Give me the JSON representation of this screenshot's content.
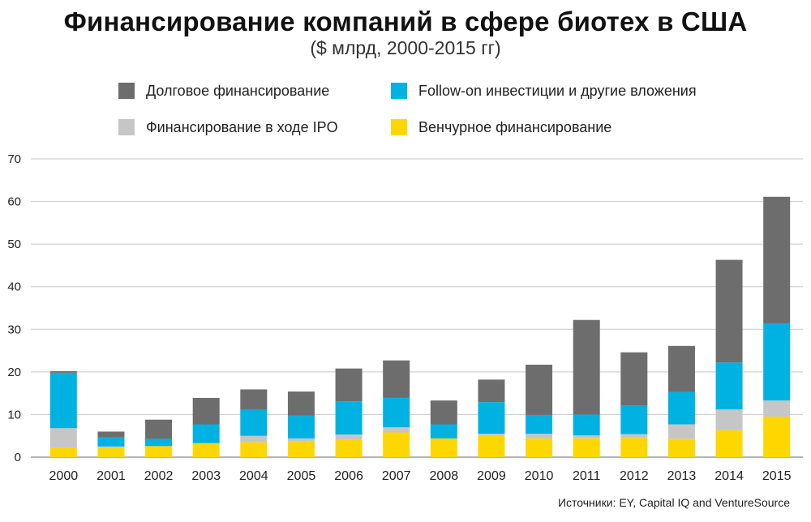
{
  "chart_data": {
    "type": "bar",
    "stacked": true,
    "title": "Финансирование компаний в сфере биотех в США",
    "subtitle": "($ млрд, 2000-2015 гг)",
    "xlabel": "",
    "ylabel": "",
    "ylim": [
      0,
      70
    ],
    "yticks": [
      0,
      10,
      20,
      30,
      40,
      50,
      60,
      70
    ],
    "grid": true,
    "legend_position": "top",
    "categories": [
      "2000",
      "2001",
      "2002",
      "2003",
      "2004",
      "2005",
      "2006",
      "2007",
      "2008",
      "2009",
      "2010",
      "2011",
      "2012",
      "2013",
      "2014",
      "2015"
    ],
    "series": [
      {
        "key": "venture",
        "name": "Венчурное финансирование",
        "color": "#FFD700",
        "values": [
          2.3,
          2.3,
          2.6,
          3.3,
          3.5,
          3.8,
          4.1,
          5.8,
          4.4,
          5.0,
          4.4,
          4.4,
          4.5,
          4.3,
          6.3,
          9.5
        ]
      },
      {
        "key": "ipo",
        "name": "Финансирование в ходе IPO",
        "color": "#C6C6C6",
        "values": [
          4.5,
          0.2,
          0.0,
          0.0,
          1.5,
          0.6,
          1.2,
          1.2,
          0.0,
          0.5,
          1.1,
          0.7,
          0.9,
          3.4,
          4.9,
          3.8
        ]
      },
      {
        "key": "followon",
        "name": "Follow-on инвестиции и другие вложения",
        "color": "#00B2E2",
        "values": [
          13.0,
          2.1,
          1.7,
          4.4,
          6.1,
          5.4,
          7.8,
          6.9,
          3.3,
          7.4,
          4.4,
          4.9,
          6.7,
          7.6,
          11.0,
          18.1
        ]
      },
      {
        "key": "debt",
        "name": "Долговое финансирование",
        "color": "#6D6D6D",
        "values": [
          0.4,
          1.4,
          4.5,
          6.2,
          4.8,
          5.6,
          7.7,
          8.8,
          5.6,
          5.3,
          11.8,
          22.2,
          12.5,
          10.8,
          24.1,
          29.7
        ]
      }
    ],
    "source": "Источники: EY, Capital IQ and VentureSource"
  }
}
